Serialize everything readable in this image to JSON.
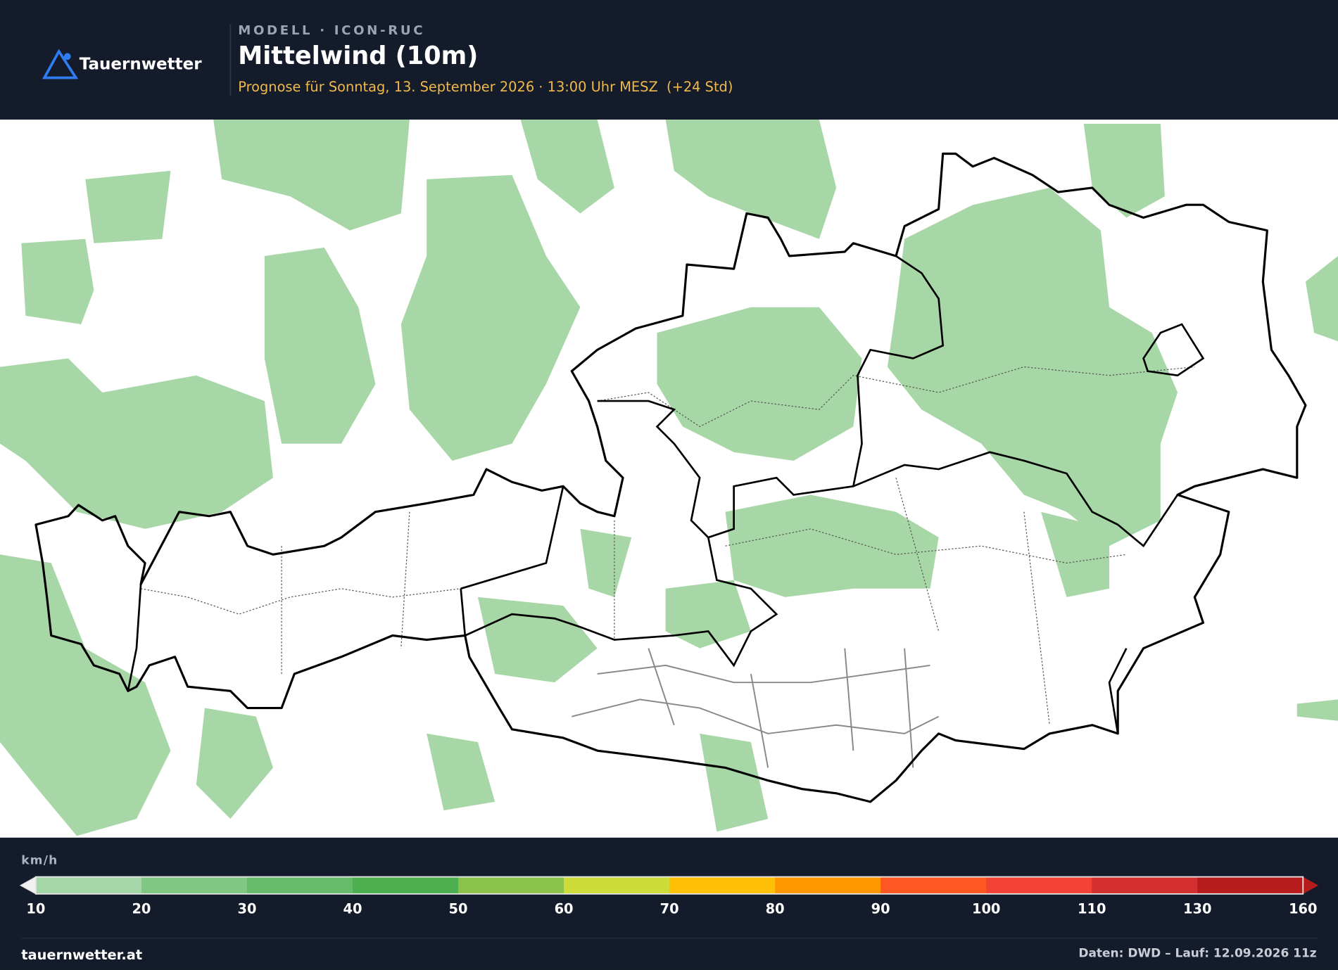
{
  "header": {
    "brand": "Tauernwetter",
    "model": "MODELL · ICON-RUC",
    "title": "Mittelwind (10m)",
    "subtitle": "Prognose für Sonntag, 13. September 2026 · 13:00 Uhr MESZ  (+24 Std)"
  },
  "legend": {
    "unit": "km/h",
    "ticks": [
      10,
      20,
      30,
      40,
      50,
      60,
      70,
      80,
      90,
      100,
      110,
      130,
      160
    ],
    "colors": [
      "#a5d6a7",
      "#81c784",
      "#66bb6a",
      "#4caf50",
      "#8bc34a",
      "#cddc39",
      "#ffc107",
      "#ff9800",
      "#ff5722",
      "#f44336",
      "#d32f2f",
      "#b71c1c"
    ],
    "under_color": "#f1f1f1",
    "over_color": "#b71c1c"
  },
  "footer": {
    "site": "tauernwetter.at",
    "source": "Daten: DWD – Lauf: 12.09.2026 11z"
  }
}
